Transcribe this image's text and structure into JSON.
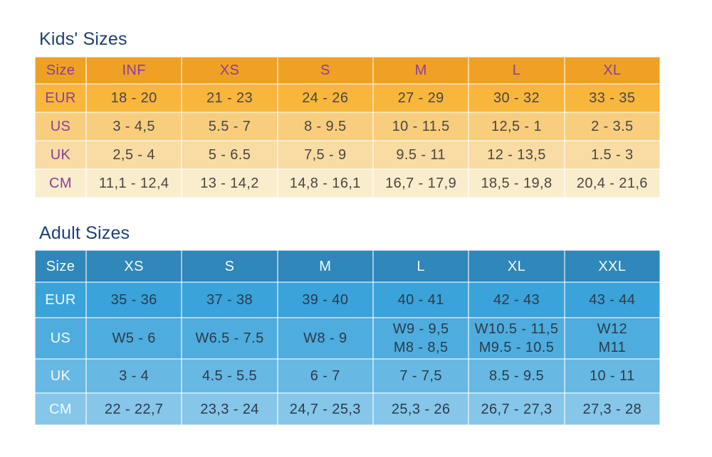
{
  "title_color": "#1E4077",
  "kids_table": {
    "title": "Kids' Sizes",
    "header": [
      "Size",
      "INF",
      "XS",
      "S",
      "M",
      "L",
      "XL"
    ],
    "rows": [
      {
        "label": "EUR",
        "cells": [
          "18 - 20",
          "21 - 23",
          "24 - 26",
          "27 - 29",
          "30 - 32",
          "33 - 35"
        ]
      },
      {
        "label": "US",
        "cells": [
          "3 - 4,5",
          "5.5 - 7",
          "8 - 9.5",
          "10 - 11.5",
          "12,5 - 1",
          "2 - 3.5"
        ]
      },
      {
        "label": "UK",
        "cells": [
          "2,5 - 4",
          "5 - 6.5",
          "7,5 - 9",
          "9.5 - 11",
          "12 - 13,5",
          "1.5 - 3"
        ]
      },
      {
        "label": "CM",
        "cells": [
          "11,1 - 12,4",
          "13 - 14,2",
          "14,8 - 16,1",
          "16,7 - 17,9",
          "18,5 - 19,8",
          "20,4 - 21,6"
        ]
      }
    ],
    "style": {
      "header_bg": "#EFA125",
      "row_bgs": [
        "#F9B63D",
        "#F8CE7E",
        "#F8DCA4",
        "#FAEDCD"
      ],
      "header_text_color": "#8B3E98",
      "label_color": "#8B3E98",
      "data_color": "#4C463E"
    }
  },
  "adult_table": {
    "title": "Adult Sizes",
    "header": [
      "Size",
      "XS",
      "S",
      "M",
      "L",
      "XL",
      "XXL"
    ],
    "rows": [
      {
        "label": "EUR",
        "cells": [
          "35 - 36",
          "37 - 38",
          "39 - 40",
          "40 - 41",
          "42 - 43",
          "43 - 44"
        ]
      },
      {
        "label": "US",
        "cells": [
          "W5 - 6",
          "W6.5 - 7.5",
          "W8 - 9",
          [
            "W9 - 9,5",
            "M8 - 8,5"
          ],
          [
            "W10.5 - 11,5",
            "M9.5 - 10.5"
          ],
          [
            "W12",
            "M11"
          ]
        ]
      },
      {
        "label": "UK",
        "cells": [
          "3 - 4",
          "4.5 - 5.5",
          "6 - 7",
          "7 - 7,5",
          "8.5 - 9.5",
          "10 - 11"
        ]
      },
      {
        "label": "CM",
        "cells": [
          "22 - 22,7",
          "23,3 - 24",
          "24,7 - 25,3",
          "25,3 - 26",
          "26,7 - 27,3",
          "27,3 - 28"
        ]
      }
    ],
    "style": {
      "header_bg": "#2F87BA",
      "row_bgs": [
        "#3AA3D9",
        "#4EADDE",
        "#67B8E3",
        "#85C6E9"
      ],
      "header_text_color": "#F4F9FC",
      "label_color": "#F4F9FC",
      "data_color": "#2C3B4A"
    }
  }
}
